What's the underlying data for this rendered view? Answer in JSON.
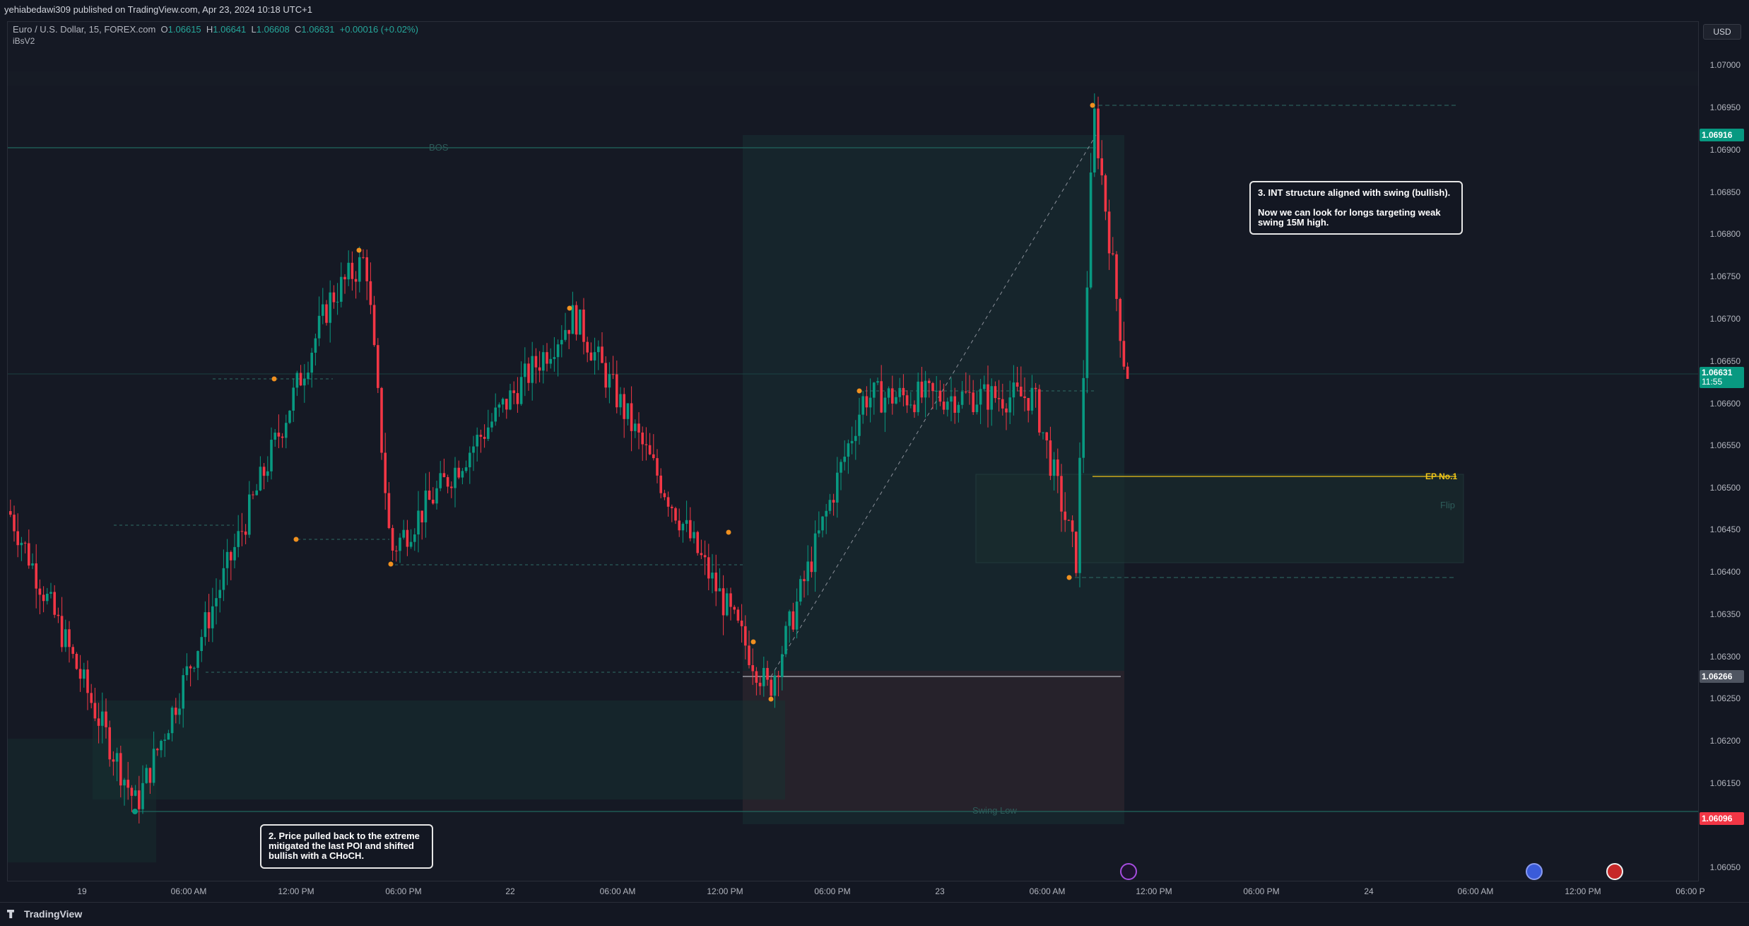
{
  "header": {
    "publisher": "yehiabedawi309 published on TradingView.com, Apr 23, 2024 10:18 UTC+1"
  },
  "legend": {
    "symbol": "Euro / U.S. Dollar, 15, FOREX.com",
    "open_label": "O",
    "open": "1.06615",
    "high_label": "H",
    "high": "1.06641",
    "low_label": "L",
    "low": "1.06608",
    "close_label": "C",
    "close": "1.06631",
    "change": "+0.00016 (+0.02%)",
    "indicator": "iBsV2"
  },
  "price_scale": {
    "currency": "USD",
    "ticks": [
      "1.07000",
      "1.06950",
      "1.06900",
      "1.06850",
      "1.06800",
      "1.06750",
      "1.06700",
      "1.06650",
      "1.06600",
      "1.06550",
      "1.06500",
      "1.06450",
      "1.06400",
      "1.06350",
      "1.06300",
      "1.06250",
      "1.06200",
      "1.06150",
      "1.06050"
    ],
    "tags": {
      "high_level": "1.06916",
      "last_price": "1.06631",
      "countdown": "11:55",
      "mid_level": "1.06266",
      "swing_low": "1.06096"
    },
    "colors": {
      "up": "#089981",
      "down": "#f23645",
      "grey": "#4f5561",
      "red": "#f23645"
    }
  },
  "time_scale": {
    "ticks": [
      "19",
      "06:00 AM",
      "12:00 PM",
      "06:00 PM",
      "22",
      "06:00 AM",
      "12:00 PM",
      "06:00 PM",
      "23",
      "06:00 AM",
      "12:00 PM",
      "06:00 PM",
      "24",
      "06:00 AM",
      "12:00 PM",
      "06:00 P"
    ]
  },
  "annotations": {
    "bos_main": "BOS",
    "swing_low": "Swing Low",
    "ep": "EP No.1",
    "flip": "Flip",
    "callout_2": "2. Price pulled back to the extreme mitigated the last POI and shifted bullish with a CHoCH.",
    "callout_3_title": "3. INT structure aligned with swing (bullish).",
    "callout_3_body": "Now we can look for longs targeting weak swing 15M high."
  },
  "footer": {
    "brand": "TradingView"
  },
  "chart_data": {
    "type": "candlestick",
    "symbol": "EURUSD",
    "timeframe": "15",
    "y_range": [
      1.0602,
      1.0705
    ],
    "candles_note_points": [
      [
        "19",
        1.0646
      ],
      [
        "19 04:00",
        1.061
      ],
      [
        "19 12:00",
        1.0672
      ],
      [
        "19 15:00",
        1.0677
      ],
      [
        "22 00:00",
        1.0641
      ],
      [
        "22 06:00",
        1.067
      ],
      [
        "22 12:00",
        1.063
      ],
      [
        "22 16:00",
        1.0624
      ],
      [
        "22 21:00",
        1.066
      ],
      [
        "23 04:00",
        1.066
      ],
      [
        "23 07:00",
        1.064
      ],
      [
        "23 08:00",
        1.0695
      ],
      [
        "23 10:00",
        1.0663
      ]
    ],
    "levels": {
      "bos": 1.069,
      "ep_no_1": 1.06505,
      "swing_low": 1.06105,
      "mid": 1.06266
    }
  }
}
